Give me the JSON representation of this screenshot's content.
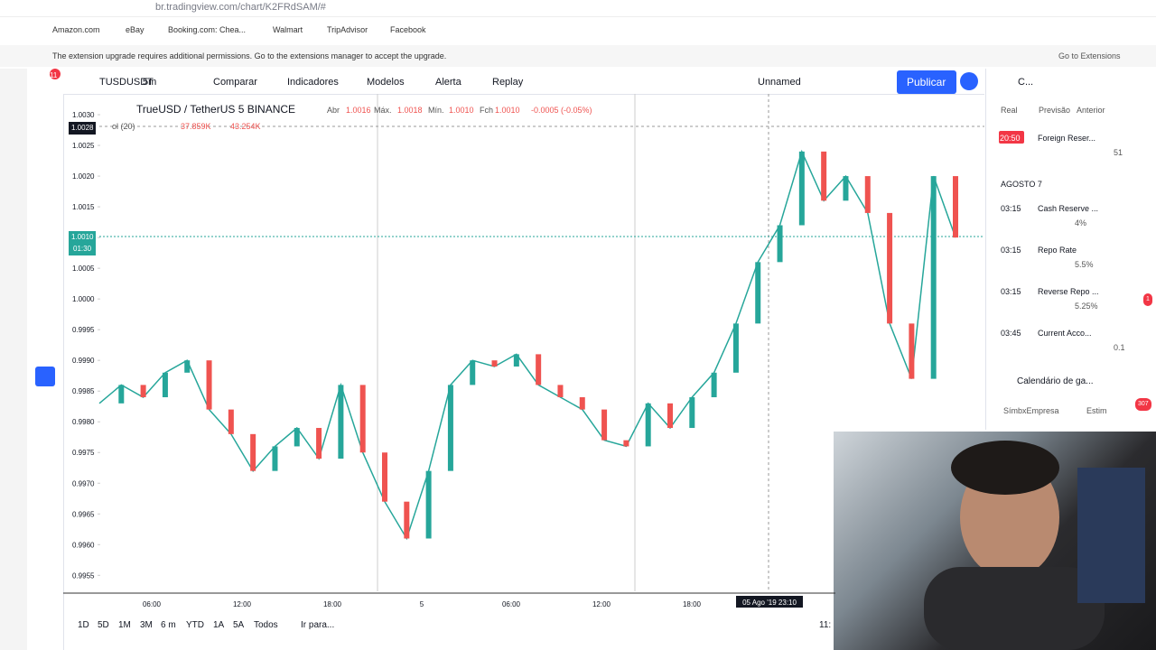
{
  "browser": {
    "url": "br.tradingview.com/chart/K2FRdSAM/#"
  },
  "bookmarks": [
    "Amazon.com",
    "eBay",
    "Booking.com: Chea...",
    "Walmart",
    "TripAdvisor",
    "Facebook"
  ],
  "notice": {
    "text": "The extension upgrade requires additional permissions. Go to the extensions manager to accept the upgrade.",
    "button": "Go to Extensions"
  },
  "toolbar": {
    "badge": "11",
    "symbol": "TUSDUSDT",
    "interval": "5m",
    "compare": "Comparar",
    "indicators": "Indicadores",
    "templates": "Modelos",
    "alert": "Alerta",
    "replay": "Replay",
    "layout": "Unnamed",
    "publish": "Publicar",
    "panel_tab": "C..."
  },
  "legend": {
    "title": "TrueUSD / TetherUS  5  BINANCE",
    "open_label": "Abr",
    "open": "1.0016",
    "high_label": "Máx.",
    "high": "1.0018",
    "low_label": "Mín.",
    "low": "1.0010",
    "close_label": "Fch",
    "close": "1.0010",
    "change": "-0.0005 (-0.05%)",
    "volume": "ol (20)",
    "vol_a": "37.859K",
    "vol_b": "43.254K"
  },
  "price_tags": {
    "crosshair": "1.0028",
    "last": "1.0010",
    "countdown": "01:30"
  },
  "chart": {
    "ylim": [
      0.99524,
      1.00328
    ],
    "yticks": [
      {
        "value": 1.003,
        "label": "1.0030"
      },
      {
        "value": 1.0025,
        "label": "1.0025"
      },
      {
        "value": 1.002,
        "label": "1.0020"
      },
      {
        "value": 1.0015,
        "label": "1.0015"
      },
      {
        "value": 1.001,
        "label": "1.0010"
      },
      {
        "value": 1.0005,
        "label": "1.0005"
      },
      {
        "value": 1.0,
        "label": "1.0000"
      },
      {
        "value": 0.9995,
        "label": "0.9995"
      },
      {
        "value": 0.999,
        "label": "0.9990"
      },
      {
        "value": 0.9985,
        "label": "0.9985"
      },
      {
        "value": 0.998,
        "label": "0.9980"
      },
      {
        "value": 0.9975,
        "label": "0.9975"
      },
      {
        "value": 0.997,
        "label": "0.9970"
      },
      {
        "value": 0.9965,
        "label": "0.9965"
      },
      {
        "value": 0.996,
        "label": "0.9960"
      },
      {
        "value": 0.9955,
        "label": "0.9955"
      }
    ],
    "values": [
      0.9983,
      0.9986,
      0.9984,
      0.9988,
      0.999,
      0.9982,
      0.9978,
      0.9972,
      0.9976,
      0.9979,
      0.9974,
      0.9986,
      0.9975,
      0.9967,
      0.9961,
      0.9972,
      0.9986,
      0.999,
      0.9989,
      0.9991,
      0.9986,
      0.9984,
      0.9982,
      0.9977,
      0.9976,
      0.9983,
      0.9979,
      0.9984,
      0.9988,
      0.9996,
      1.0006,
      1.0012,
      1.0024,
      1.0016,
      1.002,
      1.0014,
      0.9996,
      0.9987,
      1.002,
      1.001
    ],
    "time_labels": [
      "06:00",
      "12:00",
      "18:00",
      "5",
      "06:00",
      "12:00",
      "18:00"
    ],
    "crosshair_time": "05 Ago '19   23:10"
  },
  "timeframes": [
    "1D",
    "5D",
    "1M",
    "3M",
    "6 m",
    "YTD",
    "1A",
    "5A",
    "Todos"
  ],
  "goto": "Ir para...",
  "clock": "11:",
  "calendar": {
    "headers": [
      "Real",
      "Previsão",
      "Anterior"
    ],
    "first": {
      "time": "20:50",
      "name": "Foreign Reser...",
      "previous": "51"
    },
    "date": "AGOSTO 7",
    "events": [
      {
        "time": "03:15",
        "name": "Cash Reserve ...",
        "forecast": "4%"
      },
      {
        "time": "03:15",
        "name": "Repo Rate",
        "forecast": "5.5%"
      },
      {
        "time": "03:15",
        "name": "Reverse Repo ...",
        "forecast": "5.25%"
      },
      {
        "time": "03:45",
        "name": "Current Acco...",
        "forecast": "0.1"
      }
    ],
    "earnings": "Calendário de ga...",
    "earnings_cols": [
      "SímbxEmpresa",
      "Estim"
    ],
    "badges": [
      "1",
      "307"
    ]
  }
}
